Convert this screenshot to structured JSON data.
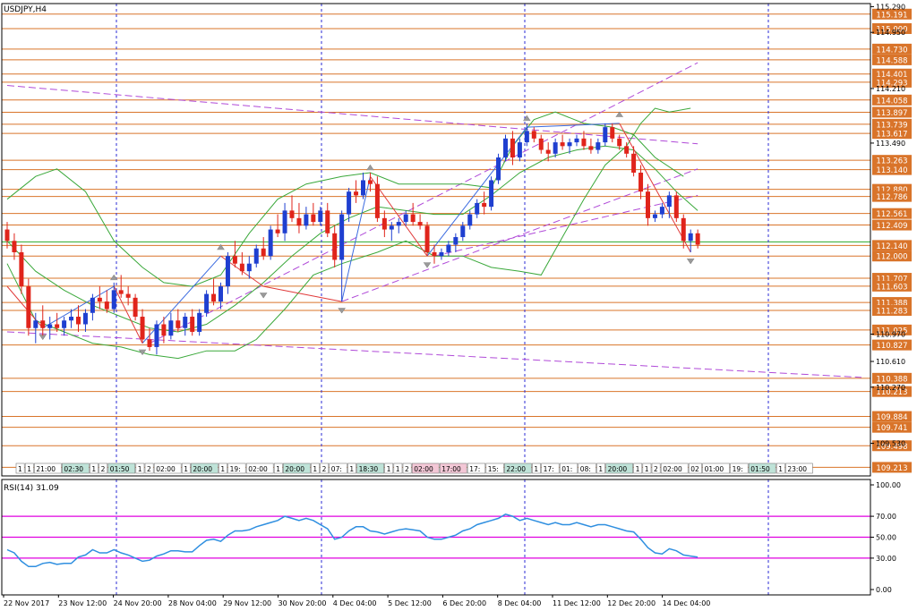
{
  "chart_data": {
    "type": "candlestick",
    "title": "USDJPY,H4",
    "colors": {
      "bull": "#1f3fd0",
      "bear": "#e0241b",
      "grid_vline": "#2b2bd6",
      "level_line": "#d9742a",
      "trend_line": "#b04ad8",
      "band": "#3aa83a",
      "zigzag_up": "#3a6ae0",
      "zigzag_down": "#e03a3a",
      "rsi_line": "#2f8fe0",
      "rsi_level": "#e000e0"
    },
    "price_axis": {
      "min": 109.1,
      "max": 115.33,
      "ticks": [
        "115.290",
        "114.950",
        "114.210",
        "113.490",
        "110.970",
        "110.610",
        "110.270",
        "109.530"
      ]
    },
    "highlighted_levels": [
      "115.191",
      "115.000",
      "114.730",
      "114.588",
      "114.401",
      "114.293",
      "114.058",
      "113.897",
      "113.739",
      "113.617",
      "113.263",
      "113.140",
      "112.880",
      "112.786",
      "112.561",
      "112.409",
      "112.140",
      "112.000",
      "111.707",
      "111.603",
      "111.388",
      "111.283",
      "111.025",
      "110.827",
      "110.388",
      "110.213",
      "109.884",
      "109.741",
      "109.498",
      "109.213"
    ],
    "current_price": "112.140",
    "time_axis": [
      "22 Nov 2017",
      "23 Nov 12:00",
      "24 Nov 20:00",
      "28 Nov 04:00",
      "29 Nov 12:00",
      "30 Nov 20:00",
      "4 Dec 04:00",
      "5 Dec 12:00",
      "6 Dec 20:00",
      "8 Dec 04:00",
      "11 Dec 12:00",
      "12 Dec 20:00",
      "14 Dec 04:00"
    ],
    "session_labels": [
      "1",
      "1",
      "21:00",
      "02:30",
      "1",
      "2",
      "01:50",
      "1",
      "2",
      "02:00",
      "1",
      "20:00",
      "1",
      "19:",
      "02:00",
      "1",
      "20:00",
      "1",
      "2",
      "07:",
      "1",
      "18:30",
      "1",
      "1",
      "2",
      "02:00",
      "17:00",
      "17:",
      "15:",
      "22:00",
      "1",
      "17:",
      "01:",
      "08:",
      "1",
      "20:00",
      "1",
      "1",
      "2",
      "02:00",
      "02",
      "01:00",
      "19:",
      "01:50",
      "1",
      "23:00"
    ],
    "candles": [
      [
        112.35,
        112.45,
        112.1,
        112.2
      ],
      [
        112.2,
        112.3,
        111.95,
        112.05
      ],
      [
        112.05,
        112.15,
        111.5,
        111.6
      ],
      [
        111.6,
        111.7,
        110.95,
        111.05
      ],
      [
        111.05,
        111.25,
        110.85,
        111.15
      ],
      [
        111.15,
        111.35,
        110.95,
        111.05
      ],
      [
        111.05,
        111.2,
        110.9,
        111.1
      ],
      [
        111.1,
        111.25,
        111.0,
        111.05
      ],
      [
        111.05,
        111.2,
        110.95,
        111.15
      ],
      [
        111.15,
        111.3,
        111.05,
        111.2
      ],
      [
        111.2,
        111.35,
        111.0,
        111.1
      ],
      [
        111.1,
        111.3,
        111.0,
        111.25
      ],
      [
        111.25,
        111.5,
        111.15,
        111.45
      ],
      [
        111.45,
        111.6,
        111.3,
        111.4
      ],
      [
        111.4,
        111.55,
        111.25,
        111.3
      ],
      [
        111.3,
        111.65,
        111.25,
        111.55
      ],
      [
        111.55,
        111.75,
        111.45,
        111.5
      ],
      [
        111.5,
        111.6,
        111.35,
        111.45
      ],
      [
        111.45,
        111.5,
        111.15,
        111.2
      ],
      [
        111.2,
        111.3,
        110.85,
        110.9
      ],
      [
        110.9,
        111.05,
        110.75,
        110.8
      ],
      [
        110.8,
        111.15,
        110.7,
        111.1
      ],
      [
        111.1,
        111.2,
        110.85,
        110.95
      ],
      [
        110.95,
        111.25,
        110.9,
        111.15
      ],
      [
        111.15,
        111.3,
        111.0,
        111.05
      ],
      [
        111.05,
        111.25,
        110.95,
        111.2
      ],
      [
        111.2,
        111.3,
        110.95,
        111.0
      ],
      [
        111.0,
        111.3,
        110.95,
        111.25
      ],
      [
        111.25,
        111.55,
        111.2,
        111.5
      ],
      [
        111.5,
        111.7,
        111.35,
        111.4
      ],
      [
        111.4,
        111.65,
        111.3,
        111.6
      ],
      [
        111.6,
        112.05,
        111.5,
        112.0
      ],
      [
        112.0,
        112.2,
        111.85,
        111.9
      ],
      [
        111.9,
        112.05,
        111.75,
        111.8
      ],
      [
        111.8,
        112.0,
        111.7,
        111.9
      ],
      [
        111.9,
        112.15,
        111.85,
        112.1
      ],
      [
        112.1,
        112.25,
        111.95,
        112.0
      ],
      [
        112.0,
        112.4,
        111.95,
        112.35
      ],
      [
        112.35,
        112.55,
        112.25,
        112.3
      ],
      [
        112.3,
        112.7,
        112.2,
        112.6
      ],
      [
        112.6,
        112.8,
        112.45,
        112.5
      ],
      [
        112.5,
        112.7,
        112.3,
        112.4
      ],
      [
        112.4,
        112.65,
        112.35,
        112.55
      ],
      [
        112.55,
        112.7,
        112.4,
        112.45
      ],
      [
        112.45,
        112.65,
        112.4,
        112.6
      ],
      [
        112.6,
        112.7,
        112.25,
        112.3
      ],
      [
        112.3,
        112.4,
        111.85,
        111.95
      ],
      [
        111.95,
        112.6,
        111.4,
        112.55
      ],
      [
        112.55,
        112.9,
        112.45,
        112.85
      ],
      [
        112.85,
        113.0,
        112.7,
        112.8
      ],
      [
        112.8,
        113.1,
        112.75,
        113.0
      ],
      [
        113.0,
        113.1,
        112.85,
        112.95
      ],
      [
        112.95,
        113.05,
        112.45,
        112.5
      ],
      [
        112.5,
        112.6,
        112.25,
        112.35
      ],
      [
        112.35,
        112.45,
        112.2,
        112.4
      ],
      [
        112.4,
        112.5,
        112.3,
        112.45
      ],
      [
        112.45,
        112.6,
        112.4,
        112.55
      ],
      [
        112.55,
        112.7,
        112.4,
        112.45
      ],
      [
        112.45,
        112.55,
        112.35,
        112.4
      ],
      [
        112.4,
        112.45,
        112.0,
        112.05
      ],
      [
        112.05,
        112.15,
        111.9,
        112.0
      ],
      [
        112.0,
        112.1,
        111.95,
        112.05
      ],
      [
        112.05,
        112.2,
        112.0,
        112.15
      ],
      [
        112.15,
        112.3,
        112.05,
        112.25
      ],
      [
        112.25,
        112.45,
        112.2,
        112.4
      ],
      [
        112.4,
        112.6,
        112.35,
        112.55
      ],
      [
        112.55,
        112.75,
        112.5,
        112.7
      ],
      [
        112.7,
        112.85,
        112.55,
        112.65
      ],
      [
        112.65,
        113.05,
        112.6,
        113.0
      ],
      [
        113.0,
        113.35,
        112.95,
        113.3
      ],
      [
        113.3,
        113.6,
        113.25,
        113.55
      ],
      [
        113.55,
        113.65,
        113.2,
        113.3
      ],
      [
        113.3,
        113.55,
        113.25,
        113.5
      ],
      [
        113.5,
        113.75,
        113.45,
        113.65
      ],
      [
        113.65,
        113.7,
        113.5,
        113.55
      ],
      [
        113.55,
        113.6,
        113.35,
        113.4
      ],
      [
        113.4,
        113.5,
        113.25,
        113.35
      ],
      [
        113.35,
        113.55,
        113.3,
        113.5
      ],
      [
        113.5,
        113.6,
        113.4,
        113.45
      ],
      [
        113.45,
        113.55,
        113.35,
        113.5
      ],
      [
        113.5,
        113.6,
        113.45,
        113.55
      ],
      [
        113.55,
        113.65,
        113.4,
        113.45
      ],
      [
        113.45,
        113.55,
        113.35,
        113.4
      ],
      [
        113.4,
        113.55,
        113.35,
        113.5
      ],
      [
        113.5,
        113.75,
        113.45,
        113.7
      ],
      [
        113.7,
        113.75,
        113.5,
        113.55
      ],
      [
        113.55,
        113.6,
        113.4,
        113.45
      ],
      [
        113.45,
        113.5,
        113.3,
        113.35
      ],
      [
        113.35,
        113.45,
        113.05,
        113.1
      ],
      [
        113.1,
        113.2,
        112.75,
        112.85
      ],
      [
        112.85,
        112.95,
        112.4,
        112.5
      ],
      [
        112.5,
        112.6,
        112.45,
        112.55
      ],
      [
        112.55,
        112.7,
        112.5,
        112.65
      ],
      [
        112.65,
        112.85,
        112.5,
        112.8
      ],
      [
        112.8,
        112.85,
        112.45,
        112.5
      ],
      [
        112.5,
        112.55,
        112.1,
        112.2
      ],
      [
        112.2,
        112.35,
        112.05,
        112.3
      ],
      [
        112.3,
        112.35,
        112.1,
        112.15
      ]
    ],
    "bands": {
      "upper": [
        [
          0,
          112.75
        ],
        [
          4,
          113.05
        ],
        [
          7,
          113.15
        ],
        [
          11,
          112.85
        ],
        [
          15,
          112.2
        ],
        [
          19,
          111.85
        ],
        [
          22,
          111.65
        ],
        [
          26,
          111.6
        ],
        [
          30,
          111.75
        ],
        [
          34,
          112.3
        ],
        [
          38,
          112.75
        ],
        [
          42,
          112.95
        ],
        [
          47,
          113.05
        ],
        [
          51,
          113.1
        ],
        [
          55,
          112.95
        ],
        [
          60,
          112.95
        ],
        [
          64,
          112.95
        ],
        [
          68,
          112.9
        ],
        [
          71,
          113.45
        ],
        [
          74,
          113.8
        ],
        [
          77,
          113.9
        ],
        [
          81,
          113.75
        ],
        [
          85,
          113.7
        ],
        [
          88,
          113.6
        ],
        [
          91,
          113.3
        ],
        [
          95,
          113.05
        ]
      ],
      "middle": [
        [
          0,
          112.2
        ],
        [
          4,
          111.8
        ],
        [
          8,
          111.55
        ],
        [
          12,
          111.35
        ],
        [
          16,
          111.2
        ],
        [
          20,
          111.05
        ],
        [
          24,
          111.0
        ],
        [
          28,
          111.1
        ],
        [
          32,
          111.35
        ],
        [
          36,
          111.65
        ],
        [
          40,
          112.0
        ],
        [
          44,
          112.3
        ],
        [
          48,
          112.5
        ],
        [
          52,
          112.65
        ],
        [
          56,
          112.6
        ],
        [
          60,
          112.55
        ],
        [
          64,
          112.55
        ],
        [
          68,
          112.8
        ],
        [
          72,
          113.1
        ],
        [
          76,
          113.3
        ],
        [
          80,
          113.4
        ],
        [
          84,
          113.45
        ],
        [
          88,
          113.4
        ],
        [
          91,
          113.15
        ],
        [
          94,
          112.85
        ],
        [
          97,
          112.6
        ]
      ],
      "lower": [
        [
          0,
          111.9
        ],
        [
          4,
          111.15
        ],
        [
          8,
          111.0
        ],
        [
          12,
          110.85
        ],
        [
          16,
          110.8
        ],
        [
          20,
          110.7
        ],
        [
          24,
          110.65
        ],
        [
          28,
          110.75
        ],
        [
          32,
          110.75
        ],
        [
          35,
          110.9
        ],
        [
          39,
          111.3
        ],
        [
          43,
          111.75
        ],
        [
          47,
          111.9
        ],
        [
          52,
          112.05
        ],
        [
          56,
          112.2
        ],
        [
          60,
          112.0
        ],
        [
          64,
          112.0
        ],
        [
          68,
          111.85
        ],
        [
          72,
          111.8
        ],
        [
          75,
          111.75
        ],
        [
          78,
          112.25
        ],
        [
          81,
          112.75
        ],
        [
          84,
          113.2
        ],
        [
          87,
          113.45
        ],
        [
          89,
          113.75
        ],
        [
          91,
          113.95
        ],
        [
          93,
          113.9
        ],
        [
          96,
          113.95
        ]
      ]
    },
    "zigzag": [
      [
        0,
        111.6
      ],
      [
        5,
        111.05
      ],
      [
        15,
        111.6
      ],
      [
        19,
        110.85
      ],
      [
        30,
        112.0
      ],
      [
        36,
        111.6
      ],
      [
        47,
        111.4
      ],
      [
        51,
        113.05
      ],
      [
        59,
        112.0
      ],
      [
        73,
        113.7
      ],
      [
        86,
        113.75
      ],
      [
        96,
        112.05
      ]
    ],
    "trend_lines": [
      [
        [
          0,
          114.25
        ],
        [
          97,
          113.48
        ]
      ],
      [
        [
          0,
          111.0
        ],
        [
          120,
          110.4
        ]
      ],
      [
        [
          20,
          110.85
        ],
        [
          97,
          114.55
        ]
      ],
      [
        [
          60,
          112.0
        ],
        [
          97,
          112.8
        ]
      ],
      [
        [
          47,
          111.4
        ],
        [
          97,
          113.15
        ]
      ]
    ],
    "rsi": {
      "label": "RSI(14) 31.09",
      "axis_ticks": [
        "100.00",
        "70.00",
        "50.00",
        "30.00",
        "0.00"
      ],
      "levels": [
        70,
        50,
        30
      ],
      "values": [
        38,
        35,
        27,
        22,
        22,
        25,
        26,
        24,
        25,
        25,
        31,
        33,
        38,
        35,
        35,
        38,
        35,
        33,
        30,
        27,
        28,
        32,
        34,
        37,
        37,
        36,
        36,
        42,
        47,
        48,
        46,
        52,
        56,
        56,
        57,
        60,
        62,
        64,
        66,
        70,
        68,
        66,
        68,
        66,
        62,
        58,
        48,
        50,
        56,
        60,
        60,
        56,
        55,
        53,
        55,
        57,
        58,
        57,
        56,
        50,
        48,
        48,
        50,
        52,
        56,
        58,
        62,
        64,
        66,
        68,
        72,
        70,
        66,
        68,
        66,
        64,
        62,
        64,
        62,
        62,
        64,
        62,
        60,
        62,
        62,
        60,
        58,
        56,
        55,
        48,
        40,
        35,
        34,
        39,
        37,
        33,
        32,
        31
      ]
    }
  }
}
